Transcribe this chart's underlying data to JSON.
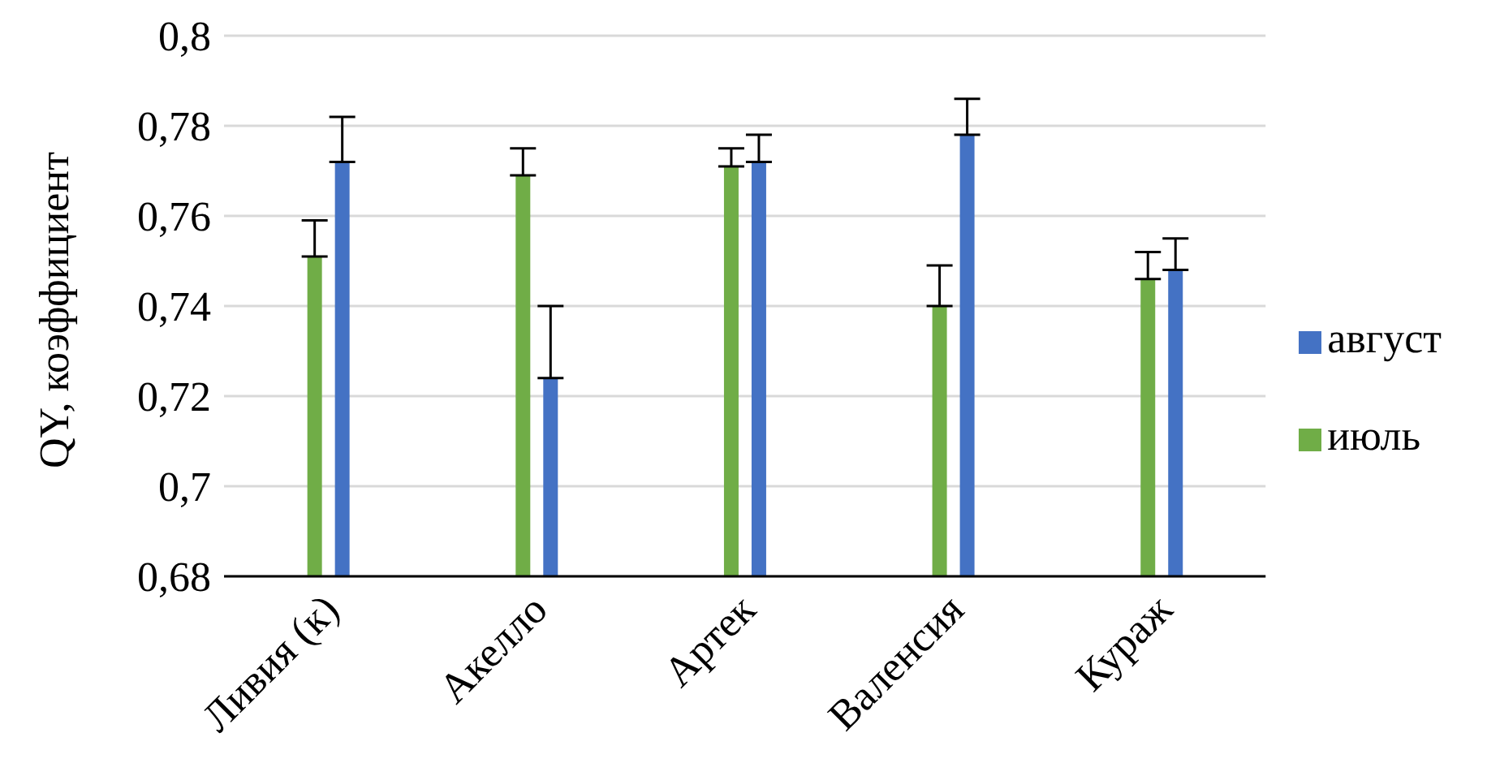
{
  "chart_data": {
    "type": "bar",
    "ylabel": "QY, коэффициент",
    "categories": [
      "Ливия (к)",
      "Акелло",
      "Артек",
      "Валенсия",
      "Кураж"
    ],
    "series": [
      {
        "name": "июль",
        "color": "#70ad47",
        "values": [
          0.751,
          0.769,
          0.771,
          0.74,
          0.746
        ],
        "errors": [
          [
            0.751,
            0.759
          ],
          [
            0.769,
            0.775
          ],
          [
            0.771,
            0.775
          ],
          [
            0.74,
            0.749
          ],
          [
            0.746,
            0.752
          ]
        ]
      },
      {
        "name": "август",
        "color": "#4472c4",
        "values": [
          0.772,
          0.724,
          0.772,
          0.778,
          0.748
        ],
        "errors": [
          [
            0.772,
            0.782
          ],
          [
            0.724,
            0.74
          ],
          [
            0.772,
            0.778
          ],
          [
            0.778,
            0.786
          ],
          [
            0.748,
            0.755
          ]
        ]
      }
    ],
    "ylim": [
      0.68,
      0.8
    ],
    "yticks": [
      {
        "value": 0.68,
        "label": "0,68"
      },
      {
        "value": 0.7,
        "label": "0,7"
      },
      {
        "value": 0.72,
        "label": "0,72"
      },
      {
        "value": 0.74,
        "label": "0,74"
      },
      {
        "value": 0.76,
        "label": "0,76"
      },
      {
        "value": 0.78,
        "label": "0,78"
      },
      {
        "value": 0.8,
        "label": "0,8"
      }
    ],
    "grid": "y",
    "legend": "right"
  }
}
